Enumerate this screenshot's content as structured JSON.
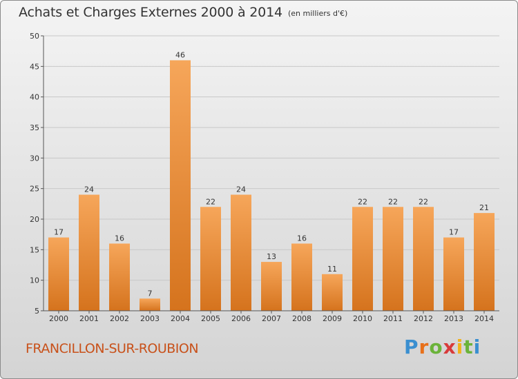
{
  "header": {
    "title": "Achats et Charges Externes 2000 à 2014",
    "unit": "(en milliers d'€)"
  },
  "footer": {
    "commune": "FRANCILLON-SUR-ROUBION",
    "logo": [
      "P",
      "r",
      "o",
      "x",
      "i",
      "t",
      "i"
    ]
  },
  "colors": {
    "bar_light": "#f6a65a",
    "bar_dark": "#d5731d",
    "grid": "#c8c8c8",
    "axis": "#555555",
    "text": "#333333",
    "commune": "#c8511a"
  },
  "chart_data": {
    "type": "bar",
    "title": "Achats et Charges Externes 2000 à 2014",
    "subtitle": "(en milliers d'€)",
    "xlabel": "",
    "ylabel": "",
    "categories": [
      "2000",
      "2001",
      "2002",
      "2003",
      "2004",
      "2005",
      "2006",
      "2007",
      "2008",
      "2009",
      "2010",
      "2011",
      "2012",
      "2013",
      "2014"
    ],
    "values": [
      17,
      24,
      16,
      7,
      46,
      22,
      24,
      13,
      16,
      11,
      22,
      22,
      22,
      17,
      21
    ],
    "ylim": [
      5,
      50
    ],
    "yticks": [
      5,
      10,
      15,
      20,
      25,
      30,
      35,
      40,
      45,
      50
    ],
    "grid": true,
    "data_labels": true
  }
}
